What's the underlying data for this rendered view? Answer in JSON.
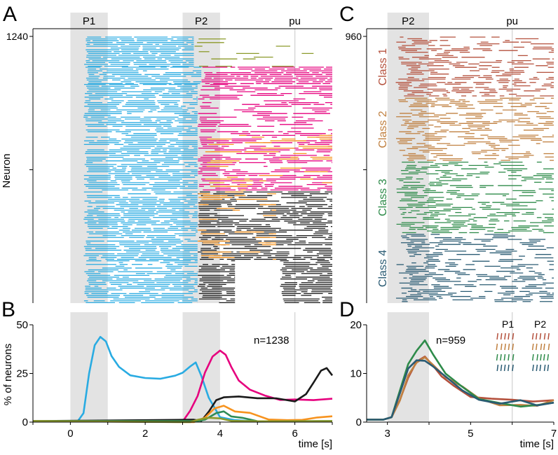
{
  "panels": {
    "A": "A",
    "B": "B",
    "C": "C",
    "D": "D"
  },
  "colors": {
    "cyan": "#29ABE2",
    "magenta": "#E6007E",
    "black": "#1A1A1A",
    "orange": "#F7931E",
    "olive": "#8C9A2B",
    "purple": "#8E6BBF",
    "green": "#2E8B57",
    "class1": "#B4503C",
    "class2": "#C08040",
    "class3": "#2E8B4A",
    "class4": "#2A5B73",
    "shade": "#E3E3E3",
    "pu_line": "#D8D8D8"
  },
  "chart_data": [
    {
      "id": "A",
      "type": "raster",
      "title": "",
      "xlabel": "",
      "ylabel": "Neuron",
      "xlim": [
        -1,
        7
      ],
      "ylim": [
        0,
        1240
      ],
      "y_tick_labels": [
        "1240"
      ],
      "epochs": [
        {
          "label": "P1",
          "start": 0,
          "end": 1
        },
        {
          "label": "P2",
          "start": 3,
          "end": 4
        },
        {
          "label": "pu",
          "at": 6
        }
      ],
      "bands": [
        {
          "from": 1240,
          "to": 1100,
          "segments": [
            {
              "t0": 0.35,
              "t1": 3.3,
              "color": "cyan",
              "density": 0.95
            },
            {
              "t0": 3.3,
              "t1": 6.5,
              "color": "olive",
              "density": 0.15
            }
          ]
        },
        {
          "from": 1100,
          "to": 1020,
          "segments": [
            {
              "t0": 0.35,
              "t1": 3.5,
              "color": "cyan",
              "density": 0.85
            },
            {
              "t0": 3.5,
              "t1": 7,
              "color": "magenta",
              "density": 0.95
            }
          ]
        },
        {
          "from": 1020,
          "to": 800,
          "segments": [
            {
              "t0": 0.35,
              "t1": 3.4,
              "color": "cyan",
              "density": 0.8
            },
            {
              "t0": 3.4,
              "t1": 7,
              "color": "magenta",
              "density": 0.55
            }
          ]
        },
        {
          "from": 800,
          "to": 520,
          "segments": [
            {
              "t0": 0.35,
              "t1": 3.4,
              "color": "cyan",
              "density": 0.85
            },
            {
              "t0": 3.4,
              "t1": 7,
              "color": "magenta",
              "density": 0.7
            },
            {
              "t0": 3.6,
              "t1": 7,
              "color": "orange",
              "density": 0.2
            }
          ]
        },
        {
          "from": 520,
          "to": 200,
          "segments": [
            {
              "t0": 0.35,
              "t1": 3.4,
              "color": "cyan",
              "density": 0.85
            },
            {
              "t0": 3.4,
              "t1": 7,
              "color": "black",
              "density": 0.8
            },
            {
              "t0": 3.4,
              "t1": 5.5,
              "color": "orange",
              "density": 0.25
            }
          ]
        },
        {
          "from": 200,
          "to": 0,
          "segments": [
            {
              "t0": 0.35,
              "t1": 3.4,
              "color": "cyan",
              "density": 0.8
            },
            {
              "t0": 3.4,
              "t1": 4.4,
              "color": "black",
              "density": 0.9
            },
            {
              "t0": 5.6,
              "t1": 7,
              "color": "black",
              "density": 0.85
            }
          ]
        }
      ]
    },
    {
      "id": "B",
      "type": "line",
      "title": "",
      "xlabel": "time [s]",
      "ylabel": "% of neurons",
      "xlim": [
        -1,
        7
      ],
      "ylim": [
        0,
        50
      ],
      "x_ticks": [
        0,
        2,
        4,
        6
      ],
      "y_ticks": [
        0,
        25,
        50
      ],
      "annotation": "n=1238",
      "epochs": [
        {
          "label": "P1",
          "start": 0,
          "end": 1
        },
        {
          "label": "P2",
          "start": 3,
          "end": 4
        },
        {
          "label": "pu",
          "at": 6
        }
      ],
      "series": [
        {
          "color": "cyan",
          "x": [
            -1,
            0.2,
            0.35,
            0.5,
            0.65,
            0.8,
            0.95,
            1.1,
            1.3,
            1.6,
            2.0,
            2.4,
            2.8,
            3.0,
            3.2,
            3.35,
            3.5,
            3.7,
            4.0,
            4.4,
            5.0,
            7.0
          ],
          "y": [
            0.5,
            0.5,
            5,
            25,
            40,
            44,
            41,
            34,
            28,
            24,
            22,
            22,
            24,
            26,
            29,
            31,
            24,
            12,
            3,
            1,
            0.5,
            0.5
          ]
        },
        {
          "color": "magenta",
          "x": [
            -1,
            3.0,
            3.2,
            3.4,
            3.6,
            3.8,
            4.0,
            4.15,
            4.3,
            4.5,
            4.8,
            5.2,
            5.6,
            6.0,
            6.5,
            7.0
          ],
          "y": [
            0.5,
            0.5,
            5,
            14,
            25,
            33,
            37,
            35,
            28,
            21,
            17,
            14,
            12,
            11,
            12,
            12
          ]
        },
        {
          "color": "black",
          "x": [
            -1,
            3.3,
            3.5,
            3.7,
            3.9,
            4.1,
            4.5,
            5.0,
            5.5,
            6.0,
            6.3,
            6.5,
            6.7,
            6.85,
            7.0
          ],
          "y": [
            0.5,
            0.5,
            1,
            6,
            11,
            12,
            13,
            13,
            12,
            10,
            14,
            20,
            26,
            27,
            24
          ]
        },
        {
          "color": "orange",
          "x": [
            -1,
            3.3,
            3.6,
            3.85,
            4.1,
            4.4,
            4.8,
            5.3,
            5.8,
            6.2,
            6.6,
            7.0
          ],
          "y": [
            0.5,
            0.5,
            3,
            7,
            8,
            6,
            4,
            2,
            1,
            1,
            2,
            3
          ]
        },
        {
          "color": "green",
          "x": [
            -1,
            3.4,
            3.6,
            3.9,
            4.1,
            4.3,
            4.6,
            5.0,
            7.0
          ],
          "y": [
            0.5,
            0.5,
            2,
            4,
            5,
            3,
            1.5,
            0.5,
            0.5
          ]
        },
        {
          "color": "olive",
          "x": [
            -1,
            3.2,
            3.4,
            3.7,
            4.0,
            4.3,
            5.0,
            7.0
          ],
          "y": [
            0.5,
            0.5,
            1.5,
            3,
            2,
            1,
            0.5,
            0.5
          ]
        }
      ]
    },
    {
      "id": "C",
      "type": "raster",
      "title": "",
      "xlabel": "",
      "ylabel": "",
      "xlim": [
        2.5,
        7
      ],
      "ylim": [
        0,
        960
      ],
      "y_tick_labels": [
        "960"
      ],
      "epochs": [
        {
          "label": "P2",
          "start": 3,
          "end": 4
        },
        {
          "label": "pu",
          "at": 6
        }
      ],
      "classes": [
        {
          "name": "Class 1",
          "color": "class1",
          "from": 960,
          "to": 740
        },
        {
          "name": "Class 2",
          "color": "class2",
          "from": 740,
          "to": 510
        },
        {
          "name": "Class 3",
          "color": "class3",
          "from": 510,
          "to": 250
        },
        {
          "name": "Class 4",
          "color": "class4",
          "from": 250,
          "to": 0
        }
      ]
    },
    {
      "id": "D",
      "type": "line",
      "title": "",
      "xlabel": "time [s]",
      "ylabel": "",
      "xlim": [
        2.5,
        7
      ],
      "ylim": [
        0,
        20
      ],
      "x_ticks": [
        3,
        5,
        7
      ],
      "y_ticks": [
        0,
        10,
        20
      ],
      "annotation": "n=959",
      "inset_labels": [
        "P1",
        "P2"
      ],
      "series": [
        {
          "color": "class1",
          "x": [
            2.5,
            2.9,
            3.1,
            3.3,
            3.5,
            3.7,
            3.9,
            4.1,
            4.3,
            4.6,
            5.0,
            5.5,
            6.0,
            6.5,
            7.0
          ],
          "y": [
            0.5,
            0.5,
            1,
            4,
            9,
            12,
            13,
            11,
            9,
            7,
            5.5,
            5,
            4.5,
            4.5,
            4.5
          ]
        },
        {
          "color": "class2",
          "x": [
            2.5,
            2.9,
            3.1,
            3.3,
            3.5,
            3.7,
            3.9,
            4.1,
            4.4,
            4.8,
            5.2,
            5.7,
            6.2,
            6.6,
            7.0
          ],
          "y": [
            0.5,
            0.5,
            1,
            5,
            10,
            12,
            13,
            12,
            9,
            7,
            5,
            4,
            3,
            3.5,
            4.5
          ]
        },
        {
          "color": "class3",
          "x": [
            2.5,
            2.9,
            3.1,
            3.3,
            3.5,
            3.7,
            3.9,
            4.1,
            4.4,
            4.8,
            5.2,
            5.7,
            6.2,
            6.6,
            7.0
          ],
          "y": [
            0.5,
            0.5,
            1,
            6,
            12,
            15,
            17,
            14,
            10,
            7,
            5,
            3.5,
            3,
            3,
            4
          ]
        },
        {
          "color": "class4",
          "x": [
            2.5,
            2.9,
            3.1,
            3.3,
            3.5,
            3.7,
            3.9,
            4.1,
            4.4,
            4.8,
            5.2,
            5.7,
            6.2,
            6.6,
            7.0
          ],
          "y": [
            0.5,
            0.5,
            1,
            6,
            11,
            13,
            12,
            11,
            9,
            7,
            5,
            4,
            4,
            4,
            4
          ]
        }
      ]
    }
  ]
}
